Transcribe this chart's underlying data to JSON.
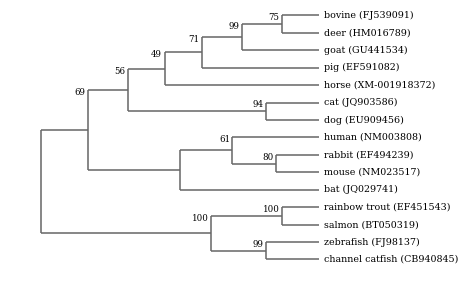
{
  "taxa": [
    "bovine (FJ539091)",
    "deer (HM016789)",
    "goat (GU441534)",
    "pig (EF591082)",
    "horse (XM-001918372)",
    "cat (JQ903586)",
    "dog (EU909456)",
    "human (NM003808)",
    "rabbit (EF494239)",
    "mouse (NM023517)",
    "bat (JQ029741)",
    "rainbow trout (EF451543)",
    "salmon (BT050319)",
    "zebrafish (FJ98137)",
    "channel catfish (CB940845)"
  ],
  "line_color": "#666666",
  "lw": 1.1,
  "font_size": 6.8,
  "bootstrap_font_size": 6.2,
  "tip_x": 10.0,
  "xlim": [
    -0.3,
    13.5
  ],
  "ylim": [
    15.5,
    -0.8
  ]
}
